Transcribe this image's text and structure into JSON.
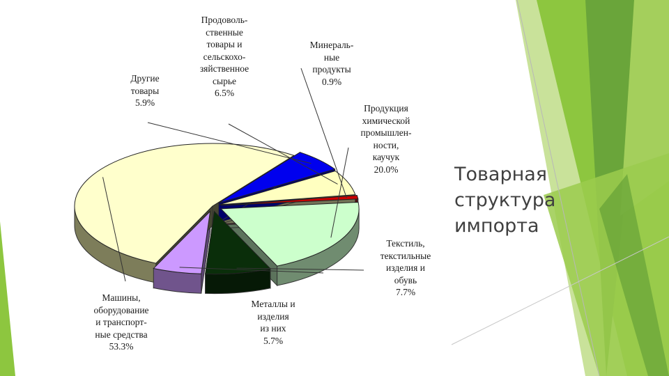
{
  "slide": {
    "title_lines": [
      "Товарная",
      "структура",
      "импорта"
    ]
  },
  "chart_data": {
    "type": "pie",
    "title": "",
    "slices": [
      {
        "label_lines": [
          "Продукция",
          "химической",
          "промышлен-",
          "ности,",
          "каучук"
        ],
        "value_text": "20.0%",
        "value": 20.0,
        "color": "#ccffcc"
      },
      {
        "label_lines": [
          "Текстиль,",
          "текстильные",
          "изделия и",
          "обувь"
        ],
        "value_text": "7.7%",
        "value": 7.7,
        "color": "#0a2e0a"
      },
      {
        "label_lines": [
          "Металлы и",
          "изделия",
          "из них"
        ],
        "value_text": "5.7%",
        "value": 5.7,
        "color": "#cc99ff"
      },
      {
        "label_lines": [
          "Машины,",
          "оборудование",
          "и транспорт-",
          "ные средства"
        ],
        "value_text": "53.3%",
        "value": 53.3,
        "color": "#ffffcc"
      },
      {
        "label_lines": [
          "Другие",
          "товары"
        ],
        "value_text": "5.9%",
        "value": 5.9,
        "color": "#0000ee"
      },
      {
        "label_lines": [
          "Продоволь-",
          "ственные",
          "товары и",
          "сельскохо-",
          "зяйственное",
          "сырье"
        ],
        "value_text": "6.5%",
        "value": 6.5,
        "color": "#ffffc0"
      },
      {
        "label_lines": [
          "Минераль-",
          "ные",
          "продукты"
        ],
        "value_text": "0.9%",
        "value": 0.9,
        "color": "#cc0000"
      }
    ]
  }
}
